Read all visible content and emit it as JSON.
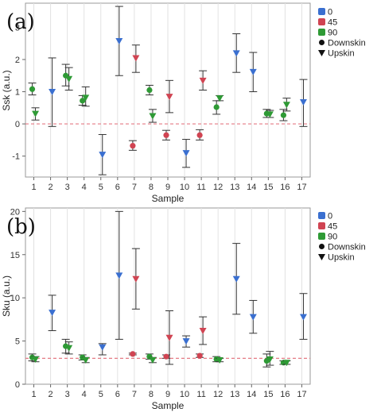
{
  "chart_data": [
    {
      "panel": "(a)",
      "type": "scatter",
      "xlabel": "Sample",
      "ylabel": "Ssk (a.u.)",
      "x_ticks": [
        "1",
        "2",
        "3",
        "4",
        "5",
        "6",
        "7",
        "8",
        "9",
        "10",
        "11",
        "12",
        "13",
        "14",
        "15",
        "16",
        "17"
      ],
      "y_ticks": [
        "-1",
        "0",
        "1",
        "2",
        "3"
      ],
      "ylim": [
        -1.65,
        3.75
      ],
      "reference_line": 0,
      "legend": [
        {
          "label": "0",
          "color": "#3a6fd0",
          "marker": "square"
        },
        {
          "label": "45",
          "color": "#d04452",
          "marker": "square"
        },
        {
          "label": "90",
          "color": "#2e9a35",
          "marker": "square"
        },
        {
          "label": "Downskin",
          "color": "#111111",
          "marker": "circle"
        },
        {
          "label": "Upskin",
          "color": "#111111",
          "marker": "triangle"
        }
      ],
      "series": [
        {
          "angle": "0",
          "surface": "Upskin",
          "color": "#3a6fd0",
          "points": [
            {
              "x": 2,
              "y": 1.0,
              "lo": -0.08,
              "hi": 2.05
            },
            {
              "x": 5,
              "y": -0.95,
              "lo": -1.58,
              "hi": -0.33
            },
            {
              "x": 6,
              "y": 2.58,
              "lo": 1.5,
              "hi": 3.65
            },
            {
              "x": 10,
              "y": -0.9,
              "lo": -1.35,
              "hi": -0.48
            },
            {
              "x": 13,
              "y": 2.2,
              "lo": 1.6,
              "hi": 2.8
            },
            {
              "x": 14,
              "y": 1.62,
              "lo": 1.0,
              "hi": 2.22
            },
            {
              "x": 17,
              "y": 0.68,
              "lo": -0.08,
              "hi": 1.38
            }
          ]
        },
        {
          "angle": "45",
          "surface": "Downskin",
          "color": "#d04452",
          "points": [
            {
              "x": 7,
              "y": -0.68,
              "lo": -0.82,
              "hi": -0.52
            },
            {
              "x": 9,
              "y": -0.35,
              "lo": -0.5,
              "hi": -0.2
            },
            {
              "x": 11,
              "y": -0.35,
              "lo": -0.5,
              "hi": -0.18
            }
          ]
        },
        {
          "angle": "45",
          "surface": "Upskin",
          "color": "#d04452",
          "points": [
            {
              "x": 7,
              "y": 2.05,
              "lo": 1.6,
              "hi": 2.45
            },
            {
              "x": 9,
              "y": 0.85,
              "lo": 0.35,
              "hi": 1.35
            },
            {
              "x": 11,
              "y": 1.35,
              "lo": 1.05,
              "hi": 1.65
            }
          ]
        },
        {
          "angle": "90",
          "surface": "Downskin",
          "color": "#2e9a35",
          "points": [
            {
              "x": 1,
              "y": 1.08,
              "lo": 0.9,
              "hi": 1.27
            },
            {
              "x": 3,
              "y": 1.5,
              "lo": 1.18,
              "hi": 1.85
            },
            {
              "x": 4,
              "y": 0.72,
              "lo": 0.58,
              "hi": 0.88
            },
            {
              "x": 8,
              "y": 1.05,
              "lo": 0.9,
              "hi": 1.2
            },
            {
              "x": 12,
              "y": 0.52,
              "lo": 0.3,
              "hi": 0.72
            },
            {
              "x": 15,
              "y": 0.32,
              "lo": 0.2,
              "hi": 0.45
            },
            {
              "x": 16,
              "y": 0.27,
              "lo": 0.1,
              "hi": 0.45
            }
          ]
        },
        {
          "angle": "90",
          "surface": "Upskin",
          "color": "#2e9a35",
          "points": [
            {
              "x": 1,
              "y": 0.32,
              "lo": 0.12,
              "hi": 0.5
            },
            {
              "x": 3,
              "y": 1.4,
              "lo": 1.05,
              "hi": 1.75
            },
            {
              "x": 4,
              "y": 0.82,
              "lo": 0.55,
              "hi": 1.15
            },
            {
              "x": 8,
              "y": 0.25,
              "lo": 0.05,
              "hi": 0.45
            },
            {
              "x": 12,
              "y": 0.8,
              "lo": 0.72,
              "hi": 0.88
            },
            {
              "x": 15,
              "y": 0.3,
              "lo": 0.2,
              "hi": 0.42
            },
            {
              "x": 16,
              "y": 0.6,
              "lo": 0.4,
              "hi": 0.8
            }
          ]
        }
      ]
    },
    {
      "panel": "(b)",
      "type": "scatter",
      "xlabel": "Sample",
      "ylabel": "Sku (a.u.)",
      "x_ticks": [
        "1",
        "2",
        "3",
        "4",
        "5",
        "6",
        "7",
        "8",
        "9",
        "10",
        "11",
        "12",
        "13",
        "14",
        "15",
        "16",
        "17"
      ],
      "y_ticks": [
        "0",
        "5",
        "10",
        "15",
        "20"
      ],
      "ylim": [
        0,
        20.4
      ],
      "reference_line": 3,
      "legend": [
        {
          "label": "0",
          "color": "#3a6fd0",
          "marker": "square"
        },
        {
          "label": "45",
          "color": "#d04452",
          "marker": "square"
        },
        {
          "label": "90",
          "color": "#2e9a35",
          "marker": "square"
        },
        {
          "label": "Downskin",
          "color": "#111111",
          "marker": "circle"
        },
        {
          "label": "Upskin",
          "color": "#111111",
          "marker": "triangle"
        }
      ],
      "series": [
        {
          "angle": "0",
          "surface": "Upskin",
          "color": "#3a6fd0",
          "points": [
            {
              "x": 2,
              "y": 8.3,
              "lo": 6.2,
              "hi": 10.3
            },
            {
              "x": 5,
              "y": 4.3,
              "lo": 3.4,
              "hi": 4.7
            },
            {
              "x": 6,
              "y": 12.6,
              "lo": 5.2,
              "hi": 20.0
            },
            {
              "x": 10,
              "y": 5.0,
              "lo": 4.3,
              "hi": 5.6
            },
            {
              "x": 13,
              "y": 12.2,
              "lo": 8.1,
              "hi": 16.3
            },
            {
              "x": 14,
              "y": 7.8,
              "lo": 5.9,
              "hi": 9.7
            },
            {
              "x": 17,
              "y": 7.8,
              "lo": 5.2,
              "hi": 10.5
            }
          ]
        },
        {
          "angle": "45",
          "surface": "Downskin",
          "color": "#d04452",
          "points": [
            {
              "x": 7,
              "y": 3.5,
              "lo": 3.4,
              "hi": 3.6
            },
            {
              "x": 9,
              "y": 3.2,
              "lo": 3.0,
              "hi": 3.4
            },
            {
              "x": 11,
              "y": 3.3,
              "lo": 3.1,
              "hi": 3.5
            }
          ]
        },
        {
          "angle": "45",
          "surface": "Upskin",
          "color": "#d04452",
          "points": [
            {
              "x": 7,
              "y": 12.2,
              "lo": 8.7,
              "hi": 15.7
            },
            {
              "x": 9,
              "y": 5.4,
              "lo": 2.3,
              "hi": 8.5
            },
            {
              "x": 11,
              "y": 6.2,
              "lo": 4.6,
              "hi": 7.8
            }
          ]
        },
        {
          "angle": "90",
          "surface": "Downskin",
          "color": "#2e9a35",
          "points": [
            {
              "x": 1,
              "y": 3.1,
              "lo": 2.7,
              "hi": 3.5
            },
            {
              "x": 3,
              "y": 4.4,
              "lo": 3.6,
              "hi": 5.2
            },
            {
              "x": 4,
              "y": 3.1,
              "lo": 2.8,
              "hi": 3.4
            },
            {
              "x": 8,
              "y": 3.2,
              "lo": 2.9,
              "hi": 3.5
            },
            {
              "x": 12,
              "y": 2.9,
              "lo": 2.6,
              "hi": 3.2
            },
            {
              "x": 15,
              "y": 2.7,
              "lo": 2.0,
              "hi": 3.5
            },
            {
              "x": 16,
              "y": 2.5,
              "lo": 2.3,
              "hi": 2.7
            }
          ]
        },
        {
          "angle": "90",
          "surface": "Upskin",
          "color": "#2e9a35",
          "points": [
            {
              "x": 1,
              "y": 2.9,
              "lo": 2.6,
              "hi": 3.2
            },
            {
              "x": 3,
              "y": 4.2,
              "lo": 3.5,
              "hi": 4.9
            },
            {
              "x": 4,
              "y": 2.8,
              "lo": 2.5,
              "hi": 3.1
            },
            {
              "x": 8,
              "y": 2.8,
              "lo": 2.5,
              "hi": 3.1
            },
            {
              "x": 12,
              "y": 2.8,
              "lo": 2.6,
              "hi": 3.0
            },
            {
              "x": 15,
              "y": 2.9,
              "lo": 2.2,
              "hi": 3.8
            },
            {
              "x": 16,
              "y": 2.5,
              "lo": 2.3,
              "hi": 2.7
            }
          ]
        }
      ]
    }
  ]
}
